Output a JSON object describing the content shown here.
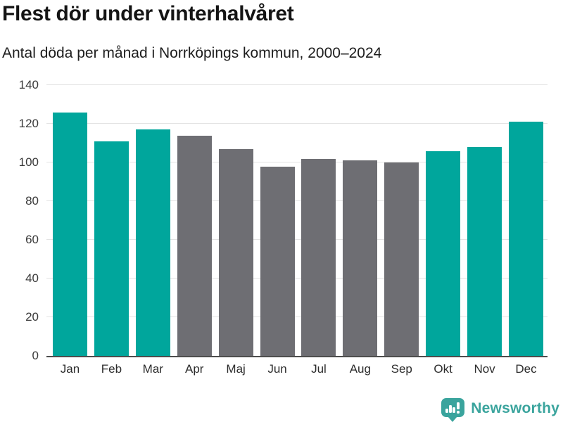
{
  "header": {
    "title": "Flest dör under vinterhalvåret",
    "subtitle": "Antal döda per månad i Norrköpings kommun, 2000–2024"
  },
  "chart_data": {
    "type": "bar",
    "title": "Flest dör under vinterhalvåret",
    "subtitle": "Antal döda per månad i Norrköpings kommun, 2000–2024",
    "categories": [
      "Jan",
      "Feb",
      "Mar",
      "Apr",
      "Maj",
      "Jun",
      "Jul",
      "Aug",
      "Sep",
      "Okt",
      "Nov",
      "Dec"
    ],
    "values": [
      126,
      111,
      117,
      114,
      107,
      98,
      102,
      101,
      100,
      106,
      108,
      121
    ],
    "highlighted": [
      true,
      true,
      true,
      false,
      false,
      false,
      false,
      false,
      false,
      true,
      true,
      true
    ],
    "xlabel": "",
    "ylabel": "",
    "ylim": [
      0,
      140
    ],
    "yticks": [
      0,
      20,
      40,
      60,
      80,
      100,
      120,
      140
    ],
    "grid": "horizontal",
    "legend": "none",
    "colors": {
      "highlight": "#00a69c",
      "base": "#6e6e73",
      "gridline": "#e3e3e3",
      "axis_line": "#4d4d4d"
    }
  },
  "footer": {
    "brand": "Newsworthy",
    "logo_icon": "bar-chart-speech-bubble",
    "brand_color": "#3aa49d"
  }
}
